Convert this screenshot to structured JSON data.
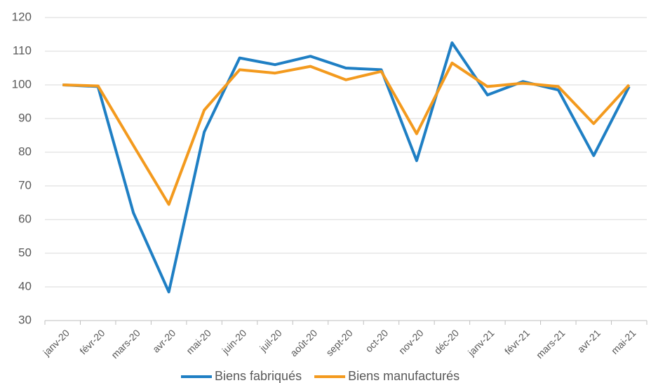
{
  "chart_data": {
    "type": "line",
    "categories": [
      "janv-20",
      "févr-20",
      "mars-20",
      "avr-20",
      "mai-20",
      "juin-20",
      "juil-20",
      "août-20",
      "sept-20",
      "oct-20",
      "nov-20",
      "déc-20",
      "janv-21",
      "févr-21",
      "mars-21",
      "avr-21",
      "mai-21"
    ],
    "series": [
      {
        "name": "Biens fabriqués",
        "color": "#1f7fc4",
        "values": [
          100,
          99.5,
          62,
          38.5,
          86,
          108,
          106,
          108.5,
          105,
          104.5,
          77.5,
          112.5,
          97,
          101,
          98.5,
          79,
          99.5
        ]
      },
      {
        "name": "Biens manufacturés",
        "color": "#f39a1e",
        "values": [
          100,
          99.7,
          82,
          64.5,
          92.5,
          104.5,
          103.5,
          105.5,
          101.5,
          104,
          85.5,
          106.5,
          99.5,
          100.5,
          99.5,
          88.5,
          100
        ]
      }
    ],
    "ylim": [
      30,
      120
    ],
    "yticks": [
      30,
      40,
      50,
      60,
      70,
      80,
      90,
      100,
      110,
      120
    ],
    "grid": true,
    "legend": "bottom"
  }
}
